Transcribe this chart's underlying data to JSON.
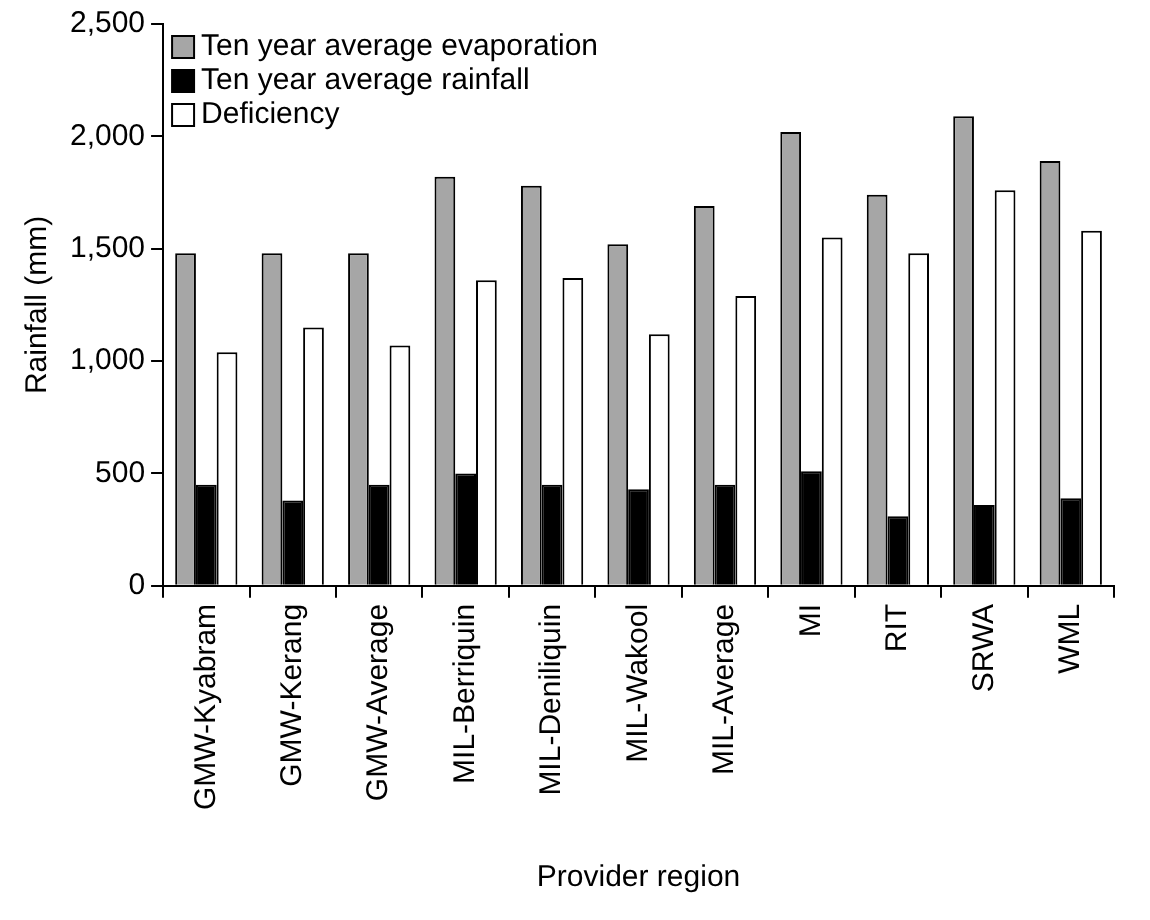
{
  "chart_data": {
    "type": "bar",
    "xlabel": "Provider region",
    "ylabel": "Rainfall (mm)",
    "categories": [
      "GMW-Kyabram",
      "GMW-Kerang",
      "GMW-Average",
      "MIL-Berriquin",
      "MIL-Deniliquin",
      "MIL-Wakool",
      "MIL-Average",
      "MI",
      "RIT",
      "SRWA",
      "WML"
    ],
    "series": [
      {
        "name": "Ten year average evaporation",
        "color": "#a6a6a6",
        "values": [
          1480,
          1480,
          1480,
          1820,
          1780,
          1520,
          1690,
          2020,
          1740,
          2090,
          1890
        ]
      },
      {
        "name": "Ten year average rainfall",
        "color": "#000000",
        "values": [
          450,
          380,
          450,
          500,
          450,
          430,
          450,
          510,
          310,
          360,
          390
        ]
      },
      {
        "name": "Deficiency",
        "color": "#ffffff",
        "values": [
          1040,
          1150,
          1070,
          1360,
          1370,
          1120,
          1290,
          1550,
          1480,
          1760,
          1580
        ]
      }
    ],
    "ylim": [
      0,
      2500
    ],
    "yticks": [
      {
        "value": 0,
        "label": "0"
      },
      {
        "value": 500,
        "label": "500"
      },
      {
        "value": 1000,
        "label": "1,000"
      },
      {
        "value": 1500,
        "label": "1,500"
      },
      {
        "value": 2000,
        "label": "2,000"
      },
      {
        "value": 2500,
        "label": "2,500"
      }
    ],
    "grid": false,
    "legend": "top left"
  }
}
